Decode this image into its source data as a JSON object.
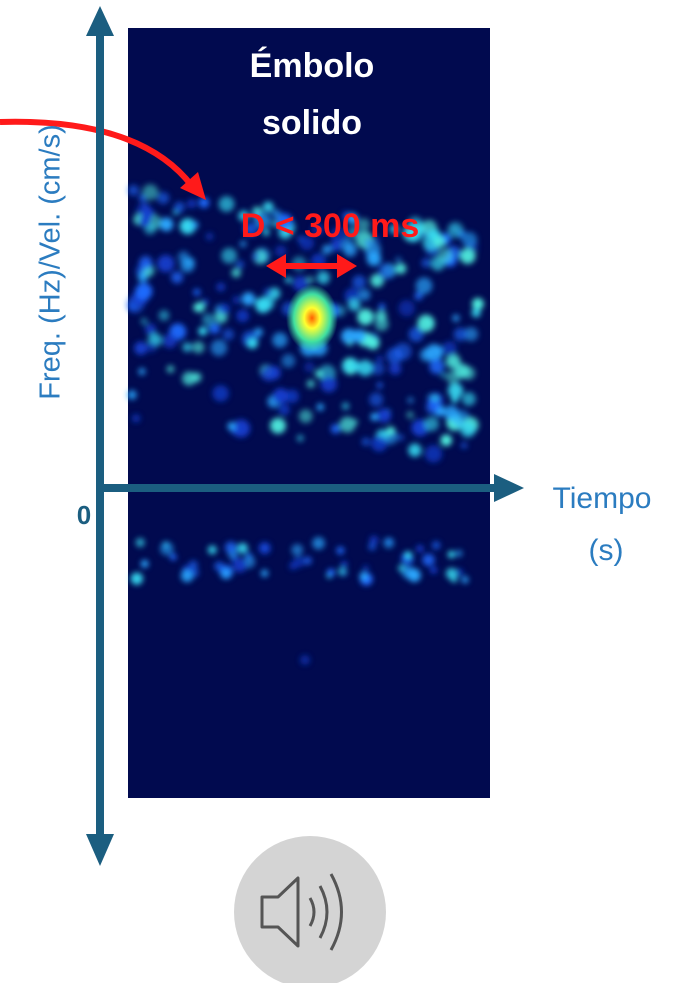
{
  "annotation": {
    "title": [
      "Émbolo",
      "solido"
    ],
    "duration": "D < 300 ms"
  },
  "axes": {
    "y_label": "Freq. (Hz)/Vel. (cm/s)",
    "origin": "0",
    "x_label": [
      "Tiempo",
      "(s)"
    ]
  }
}
